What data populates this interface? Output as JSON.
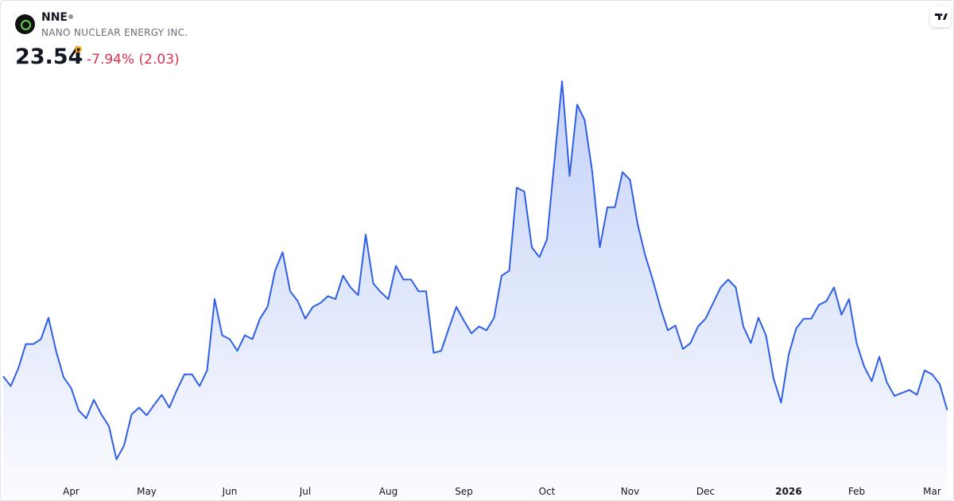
{
  "header": {
    "symbol": "NNE",
    "name": "NANO NUCLEAR ENERGY INC.",
    "price": 23.54,
    "interval": "D",
    "change": "-7.94% (2.03)"
  },
  "chart_data": {
    "type": "area",
    "color": "#2f5fe6",
    "ylim": [
      16.6,
      58.1
    ],
    "categories": [
      null,
      null,
      null,
      null,
      null,
      null,
      null,
      null,
      null,
      "Apr",
      null,
      null,
      null,
      null,
      null,
      null,
      null,
      null,
      null,
      "May",
      null,
      null,
      null,
      null,
      null,
      null,
      null,
      null,
      null,
      null,
      "Jun",
      null,
      null,
      null,
      null,
      null,
      null,
      null,
      null,
      null,
      "Jul",
      null,
      null,
      null,
      null,
      null,
      null,
      null,
      null,
      null,
      null,
      "Aug",
      null,
      null,
      null,
      null,
      null,
      null,
      null,
      null,
      null,
      "Sep",
      null,
      null,
      null,
      null,
      null,
      null,
      null,
      null,
      null,
      null,
      "Oct",
      null,
      null,
      null,
      null,
      null,
      null,
      null,
      null,
      null,
      null,
      "Nov",
      null,
      null,
      null,
      null,
      null,
      null,
      null,
      null,
      null,
      "Dec",
      null,
      null,
      null,
      null,
      null,
      null,
      null,
      null,
      null,
      null,
      "2026",
      null,
      null,
      null,
      null,
      null,
      null,
      null,
      null,
      "Feb",
      null,
      null,
      null,
      null,
      null,
      null,
      null,
      null,
      null,
      "Mar",
      null,
      null
    ],
    "values": [
      27.0,
      26.0,
      27.8,
      30.3,
      30.3,
      30.8,
      33.0,
      29.6,
      26.9,
      25.8,
      23.5,
      22.7,
      24.6,
      23.1,
      21.9,
      18.5,
      19.9,
      23.1,
      23.8,
      23.0,
      24.1,
      25.1,
      23.8,
      25.6,
      27.2,
      27.2,
      26.0,
      27.6,
      34.9,
      31.2,
      30.8,
      29.6,
      31.2,
      30.8,
      32.9,
      34.1,
      37.8,
      39.7,
      35.7,
      34.7,
      32.9,
      34.1,
      34.5,
      35.2,
      34.9,
      37.3,
      36.1,
      35.3,
      41.5,
      36.5,
      35.6,
      34.9,
      38.3,
      36.9,
      36.9,
      35.7,
      35.7,
      29.4,
      29.6,
      31.9,
      34.1,
      32.7,
      31.4,
      32.1,
      31.7,
      33.0,
      37.3,
      37.8,
      46.3,
      45.9,
      40.2,
      39.2,
      41.0,
      49.1,
      57.2,
      47.5,
      54.8,
      53.2,
      47.9,
      40.2,
      44.3,
      44.3,
      47.9,
      47.1,
      42.6,
      39.4,
      36.9,
      34.1,
      31.7,
      32.2,
      29.8,
      30.4,
      32.1,
      32.9,
      34.5,
      36.1,
      36.9,
      36.1,
      32.1,
      30.4,
      33.0,
      31.2,
      26.8,
      24.3,
      29.2,
      31.9,
      32.9,
      32.9,
      34.3,
      34.7,
      36.1,
      33.3,
      34.9,
      30.4,
      28.0,
      26.5,
      29.0,
      26.4,
      25.0,
      25.3,
      25.6,
      25.1,
      27.6,
      27.2,
      26.2,
      23.54
    ]
  }
}
